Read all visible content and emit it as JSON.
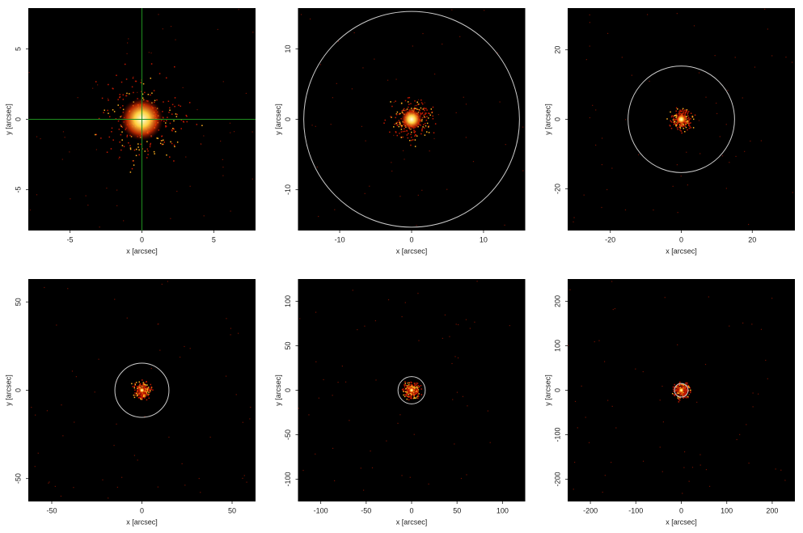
{
  "chart_data": [
    {
      "type": "image",
      "xlabel": "x [arcsec]",
      "ylabel": "y [arcsec]",
      "xlim": [
        -7.9,
        7.9
      ],
      "ylim": [
        -7.9,
        7.9
      ],
      "xticks": [
        -5,
        0,
        5
      ],
      "yticks": [
        -5,
        0,
        5
      ],
      "crosshair": {
        "x": 0,
        "y": 0,
        "color": "#1f8f1f"
      }
    },
    {
      "type": "image",
      "xlabel": "x [arcsec]",
      "ylabel": "y [arcsec]",
      "xlim": [
        -15.8,
        15.8
      ],
      "ylim": [
        -15.8,
        15.8
      ],
      "xticks": [
        -10,
        0,
        10
      ],
      "yticks": [
        -10,
        0,
        10
      ],
      "circle": {
        "x": 0,
        "y": 0,
        "r": 15,
        "color": "#cccccc"
      }
    },
    {
      "type": "image",
      "xlabel": "x [arcsec]",
      "ylabel": "y [arcsec]",
      "xlim": [
        -32,
        32
      ],
      "ylim": [
        -32,
        32
      ],
      "xticks": [
        -20,
        0,
        20
      ],
      "yticks": [
        -20,
        0,
        20
      ],
      "circle": {
        "x": 0,
        "y": 0,
        "r": 15,
        "color": "#cccccc"
      }
    },
    {
      "type": "image",
      "xlabel": "x [arcsec]",
      "ylabel": "y [arcsec]",
      "xlim": [
        -63,
        63
      ],
      "ylim": [
        -63,
        63
      ],
      "xticks": [
        -50,
        0,
        50
      ],
      "yticks": [
        -50,
        0,
        50
      ],
      "circle": {
        "x": 0,
        "y": 0,
        "r": 15,
        "color": "#cccccc"
      }
    },
    {
      "type": "image",
      "xlabel": "x [arcsec]",
      "ylabel": "y [arcsec]",
      "xlim": [
        -125,
        125
      ],
      "ylim": [
        -125,
        125
      ],
      "xticks": [
        -100,
        -50,
        0,
        50,
        100
      ],
      "yticks": [
        -100,
        -50,
        0,
        50,
        100
      ],
      "circle": {
        "x": 0,
        "y": 0,
        "r": 15,
        "color": "#cccccc"
      }
    },
    {
      "type": "image",
      "xlabel": "x [arcsec]",
      "ylabel": "y [arcsec]",
      "xlim": [
        -250,
        250
      ],
      "ylim": [
        -250,
        250
      ],
      "xticks": [
        -200,
        -100,
        0,
        100,
        200
      ],
      "yticks": [
        -200,
        -100,
        0,
        100,
        200
      ],
      "circle": {
        "x": 0,
        "y": 0,
        "r": 15,
        "color": "#cccccc"
      }
    }
  ]
}
